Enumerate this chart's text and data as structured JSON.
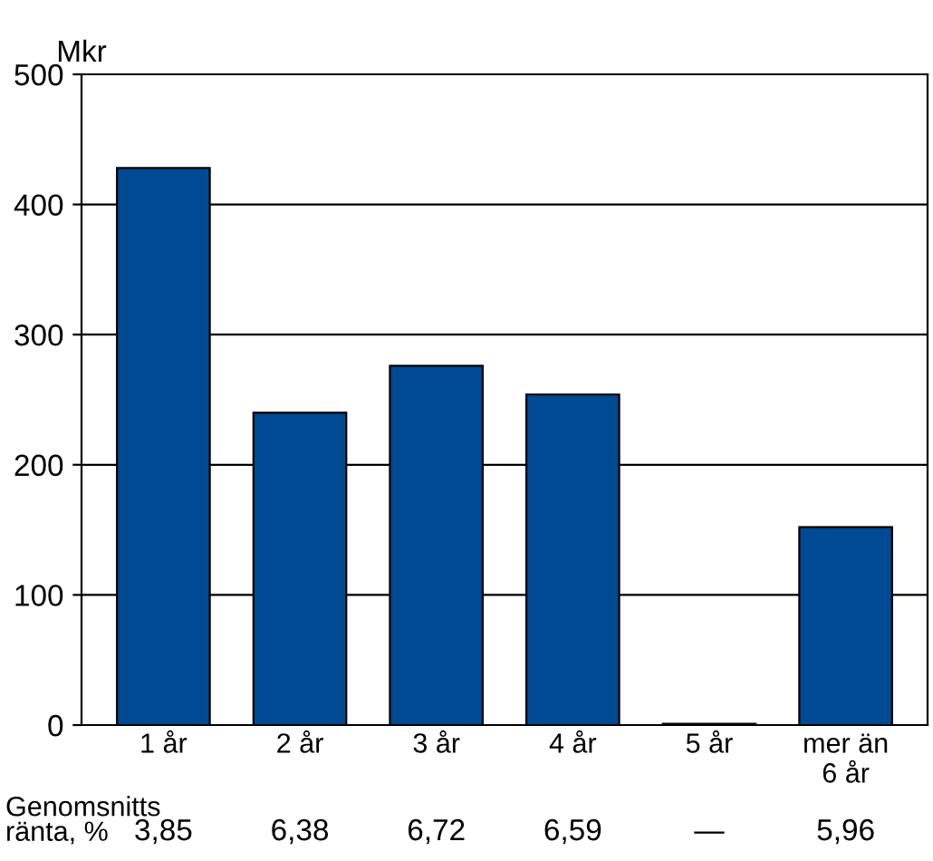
{
  "chart_data": {
    "type": "bar",
    "ylabel": "Mkr",
    "categories": [
      "1 år",
      "2 år",
      "3 år",
      "4 år",
      "5 år",
      "mer än\n6 år"
    ],
    "values": [
      428,
      240,
      276,
      254,
      1,
      152
    ],
    "color": "#004a94",
    "ylim": [
      0,
      500
    ],
    "yticks": [
      0,
      100,
      200,
      300,
      400,
      500
    ],
    "grid": "y",
    "annotations": [
      "Genomsnitts\nränta, %",
      "3,85",
      "6,38",
      "6,72",
      "6,59",
      "—",
      "5,96"
    ]
  }
}
